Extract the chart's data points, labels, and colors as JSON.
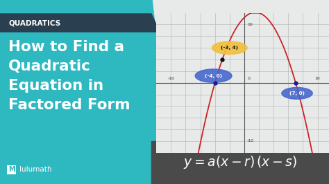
{
  "bg_color_left": "#2eb8c0",
  "quadratics_label": "QUADRATICS",
  "quadratics_bg": "#2a3f4f",
  "title_line1": "How to Find a",
  "title_line2": "Quadratic",
  "title_line3": "Equation in",
  "title_line4": "Factored Form",
  "brand": "lulumath",
  "graph_bg": "#e8eaea",
  "grid_color": "#bbbbbb",
  "curve_color": "#cc2222",
  "label_yellow_bg": "#f0c040",
  "label_blue_bg": "#4466cc",
  "pt1": [
    -4,
    0
  ],
  "pt2": [
    7,
    0
  ],
  "pt3": [
    -3,
    4
  ],
  "formula_bg": "#4a4a4a",
  "white": "#ffffff",
  "dark_text": "#111111"
}
